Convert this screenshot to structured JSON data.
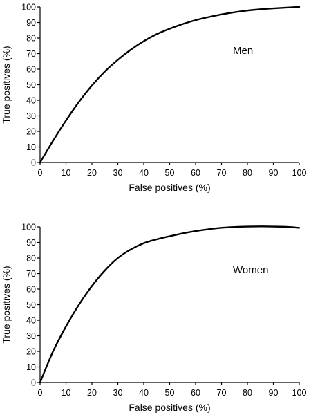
{
  "chart_data": [
    {
      "type": "line",
      "annotation": "Men",
      "xlabel": "False positives (%)",
      "ylabel": "True positives (%)",
      "xlim": [
        0,
        100
      ],
      "ylim": [
        0,
        100
      ],
      "xticks": [
        0,
        10,
        20,
        30,
        40,
        50,
        60,
        70,
        80,
        90,
        100
      ],
      "yticks": [
        0,
        10,
        20,
        30,
        40,
        50,
        60,
        70,
        80,
        90,
        100
      ],
      "grid": false,
      "series": [
        {
          "x": [
            0,
            5,
            10,
            15,
            20,
            25,
            30,
            35,
            40,
            45,
            50,
            55,
            60,
            65,
            70,
            75,
            80,
            85,
            90,
            95,
            100
          ],
          "y": [
            0,
            14,
            27,
            39,
            49.5,
            58.5,
            66,
            72.5,
            78,
            82.5,
            86,
            89,
            91.5,
            93.5,
            95.2,
            96.6,
            97.7,
            98.5,
            99.1,
            99.6,
            100
          ]
        }
      ]
    },
    {
      "type": "line",
      "annotation": "Women",
      "xlabel": "False positives (%)",
      "ylabel": "True positives (%)",
      "xlim": [
        0,
        100
      ],
      "ylim": [
        0,
        100
      ],
      "xticks": [
        0,
        10,
        20,
        30,
        40,
        50,
        60,
        70,
        80,
        90,
        100
      ],
      "yticks": [
        0,
        10,
        20,
        30,
        40,
        50,
        60,
        70,
        80,
        90,
        100
      ],
      "grid": false,
      "series": [
        {
          "x": [
            0,
            5,
            10,
            15,
            20,
            25,
            30,
            35,
            40,
            45,
            50,
            55,
            60,
            65,
            70,
            75,
            80,
            85,
            90,
            95,
            100
          ],
          "y": [
            0,
            20,
            36,
            50,
            62,
            72,
            80,
            85.5,
            89.5,
            92,
            94,
            95.8,
            97.3,
            98.5,
            99.4,
            99.9,
            100.2,
            100.3,
            100.2,
            100,
            99.4
          ]
        }
      ]
    }
  ]
}
